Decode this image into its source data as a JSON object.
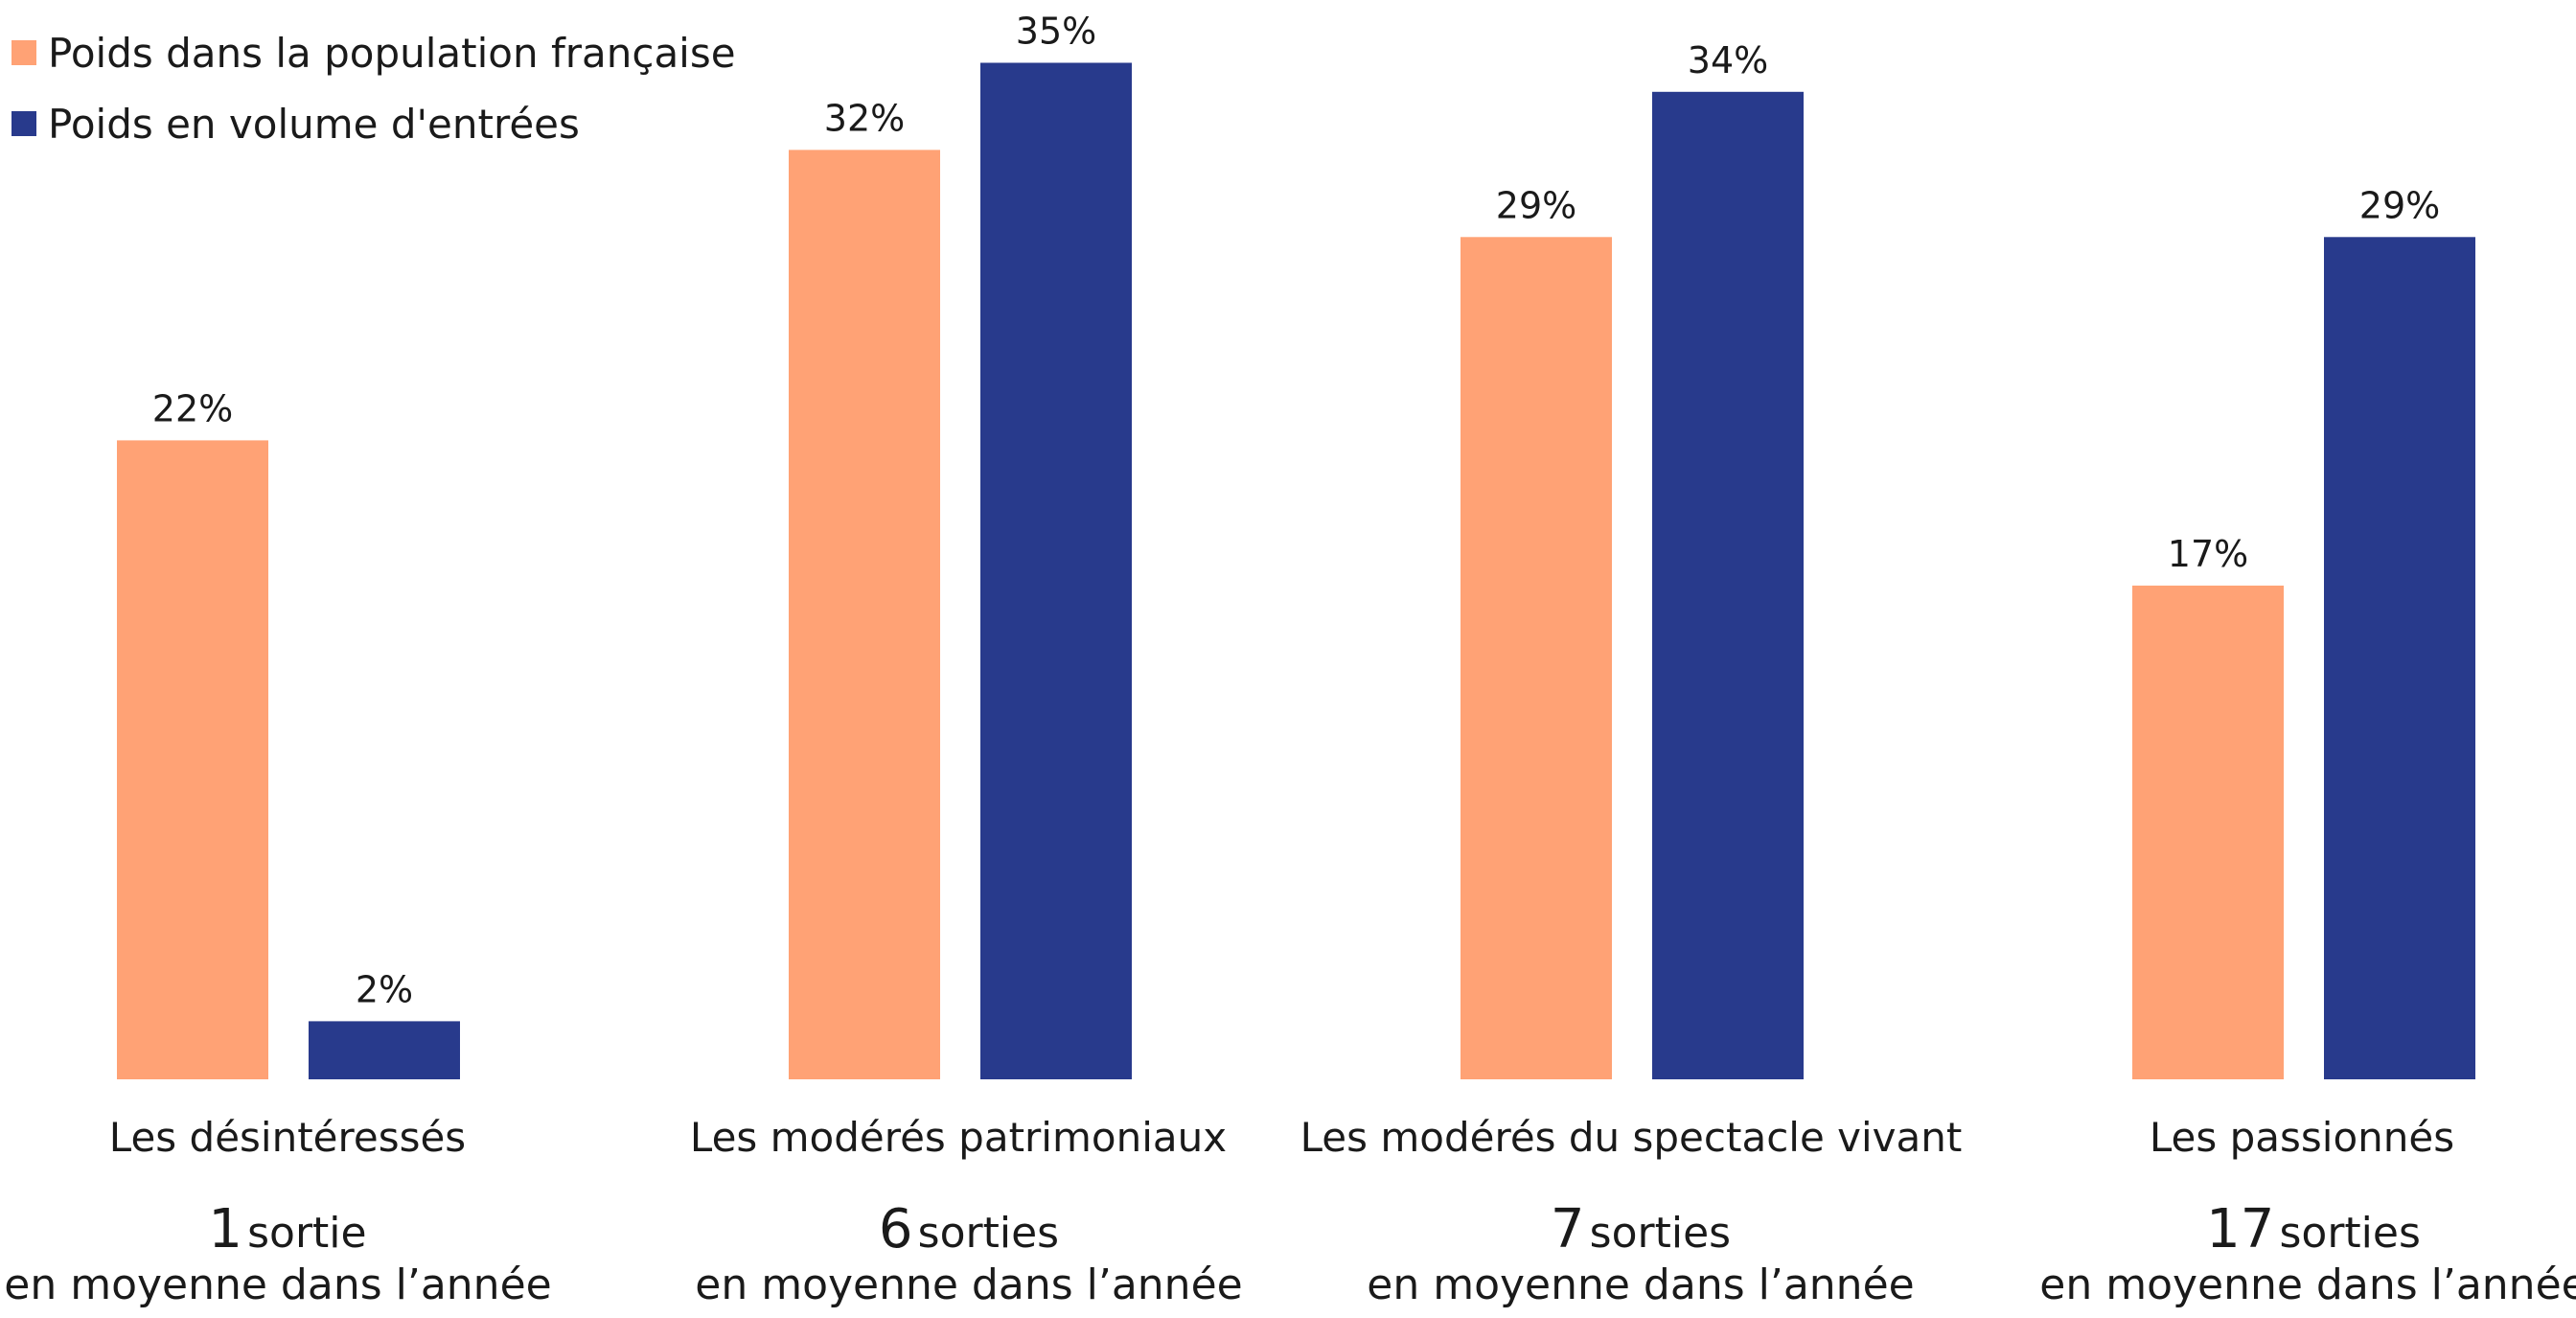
{
  "chart_data": {
    "type": "bar",
    "categories": [
      "Les désintéressés",
      "Les modérés patrimoniaux",
      "Les modérés du spectacle vivant",
      "Les passionnés"
    ],
    "series": [
      {
        "name": "Poids dans la population française",
        "color": "#FFA275",
        "values": [
          22,
          32,
          29,
          17
        ]
      },
      {
        "name": "Poids en volume d'entrées",
        "color": "#283A8C",
        "values": [
          2,
          35,
          34,
          29
        ]
      }
    ],
    "value_suffix": "%",
    "ylim": [
      0,
      35
    ],
    "grid": false,
    "legend_placement": "top-left"
  },
  "legend": [
    {
      "label": "Poids dans la population française",
      "color": "#FFA275"
    },
    {
      "label": "Poids en volume d'entrées",
      "color": "#283A8C"
    }
  ],
  "groups": [
    {
      "label": "Les désintéressés",
      "count": "1",
      "unit": "sortie",
      "sub": "en moyenne dans l’année"
    },
    {
      "label": "Les modérés patrimoniaux",
      "count": "6",
      "unit": "sorties",
      "sub": "en moyenne dans l’année"
    },
    {
      "label": "Les modérés du spectacle vivant",
      "count": "7",
      "unit": "sorties",
      "sub": "en moyenne dans l’année"
    },
    {
      "label": "Les passionnés",
      "count": "17",
      "unit": "sorties",
      "sub": "en moyenne dans l’année"
    }
  ]
}
